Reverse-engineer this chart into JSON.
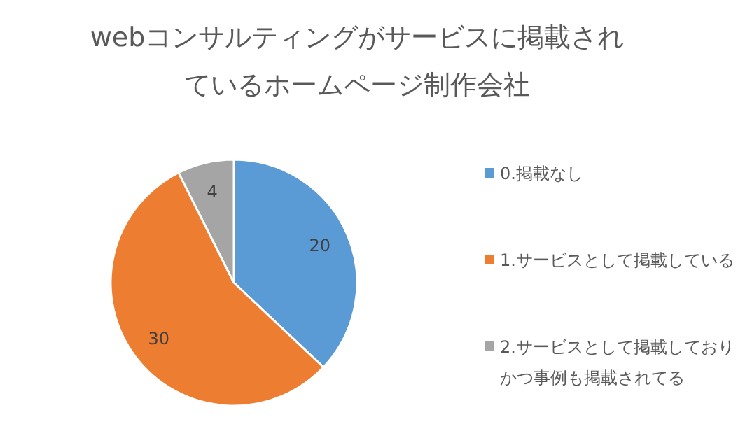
{
  "chart_data": {
    "type": "pie",
    "title": "webコンサルティングがサービスに掲載されているホームページ制作会社",
    "categories": [
      "0.掲載なし",
      "1.サービスとして掲載している",
      "2.サービスとして掲載しておりかつ事例も掲載されてる"
    ],
    "values": [
      20,
      30,
      4
    ],
    "colors": [
      "#5b9bd5",
      "#ed7d31",
      "#a5a5a5"
    ],
    "data_labels": true,
    "legend": "right"
  }
}
